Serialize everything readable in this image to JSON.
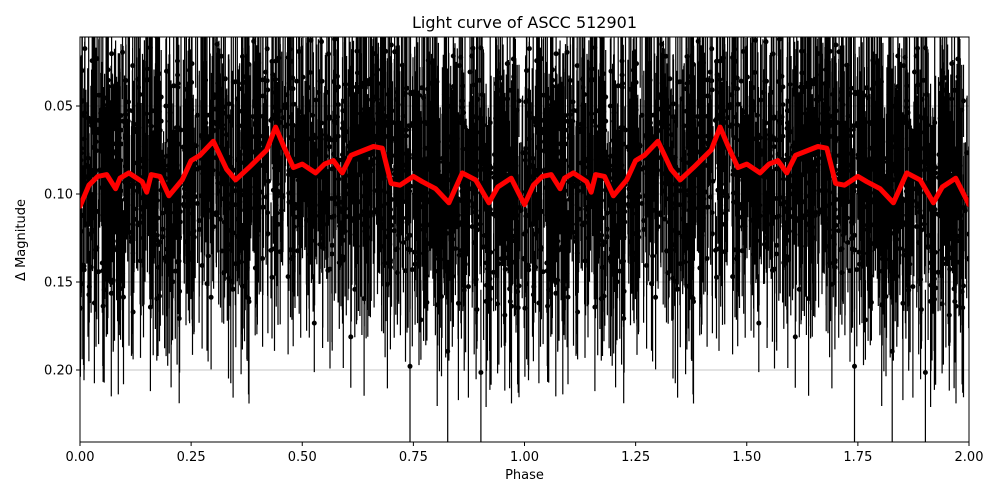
{
  "chart_data": {
    "type": "scatter",
    "title": "Light curve of ASCC 512901",
    "xlabel": "Phase",
    "ylabel": "Δ Magnitude",
    "xlim": [
      0.0,
      2.0
    ],
    "ylim": [
      0.24,
      0.01
    ],
    "y_inverted": true,
    "xticks": [
      "0.00",
      "0.25",
      "0.50",
      "0.75",
      "1.00",
      "1.25",
      "1.50",
      "1.75",
      "2.00"
    ],
    "xtick_values": [
      0.0,
      0.25,
      0.5,
      0.75,
      1.0,
      1.25,
      1.5,
      1.75,
      2.0
    ],
    "yticks": [
      "0.05",
      "0.10",
      "0.15",
      "0.20"
    ],
    "ytick_values": [
      0.05,
      0.1,
      0.15,
      0.2
    ],
    "grid": "horizontal",
    "legend": null,
    "series": [
      {
        "name": "observations",
        "style": "black points with vertical error bars",
        "color": "#000000",
        "description": "Dense phase-folded photometry, scattered roughly 0.01–0.24 with large error bars, repeated over two cycles"
      },
      {
        "name": "binned mean",
        "style": "thick red line",
        "color": "#ff0000",
        "x": [
          0.0,
          0.02,
          0.04,
          0.06,
          0.08,
          0.09,
          0.11,
          0.14,
          0.15,
          0.16,
          0.18,
          0.2,
          0.23,
          0.25,
          0.27,
          0.3,
          0.33,
          0.35,
          0.38,
          0.4,
          0.42,
          0.44,
          0.46,
          0.48,
          0.5,
          0.53,
          0.55,
          0.57,
          0.59,
          0.61,
          0.64,
          0.66,
          0.68,
          0.7,
          0.72,
          0.75,
          0.77,
          0.8,
          0.83,
          0.86,
          0.89,
          0.92,
          0.94,
          0.97,
          1.0,
          1.02,
          1.04,
          1.06,
          1.08,
          1.09,
          1.11,
          1.14,
          1.15,
          1.16,
          1.18,
          1.2,
          1.23,
          1.25,
          1.27,
          1.3,
          1.33,
          1.35,
          1.38,
          1.4,
          1.42,
          1.44,
          1.46,
          1.48,
          1.5,
          1.53,
          1.55,
          1.57,
          1.59,
          1.61,
          1.64,
          1.66,
          1.68,
          1.7,
          1.72,
          1.75,
          1.77,
          1.8,
          1.83,
          1.86,
          1.89,
          1.92,
          1.94,
          1.97,
          2.0
        ],
        "values": [
          0.107,
          0.095,
          0.09,
          0.089,
          0.097,
          0.091,
          0.088,
          0.093,
          0.099,
          0.089,
          0.09,
          0.101,
          0.092,
          0.081,
          0.078,
          0.07,
          0.086,
          0.092,
          0.085,
          0.08,
          0.075,
          0.062,
          0.074,
          0.085,
          0.083,
          0.088,
          0.083,
          0.081,
          0.088,
          0.078,
          0.075,
          0.073,
          0.074,
          0.094,
          0.095,
          0.09,
          0.093,
          0.097,
          0.105,
          0.088,
          0.092,
          0.105,
          0.096,
          0.091,
          0.106,
          0.095,
          0.09,
          0.089,
          0.097,
          0.091,
          0.088,
          0.093,
          0.099,
          0.089,
          0.09,
          0.101,
          0.092,
          0.081,
          0.078,
          0.07,
          0.086,
          0.092,
          0.085,
          0.08,
          0.075,
          0.062,
          0.074,
          0.085,
          0.083,
          0.088,
          0.083,
          0.081,
          0.088,
          0.078,
          0.075,
          0.073,
          0.074,
          0.094,
          0.095,
          0.09,
          0.093,
          0.097,
          0.105,
          0.088,
          0.092,
          0.105,
          0.096,
          0.091,
          0.106
        ]
      }
    ]
  }
}
